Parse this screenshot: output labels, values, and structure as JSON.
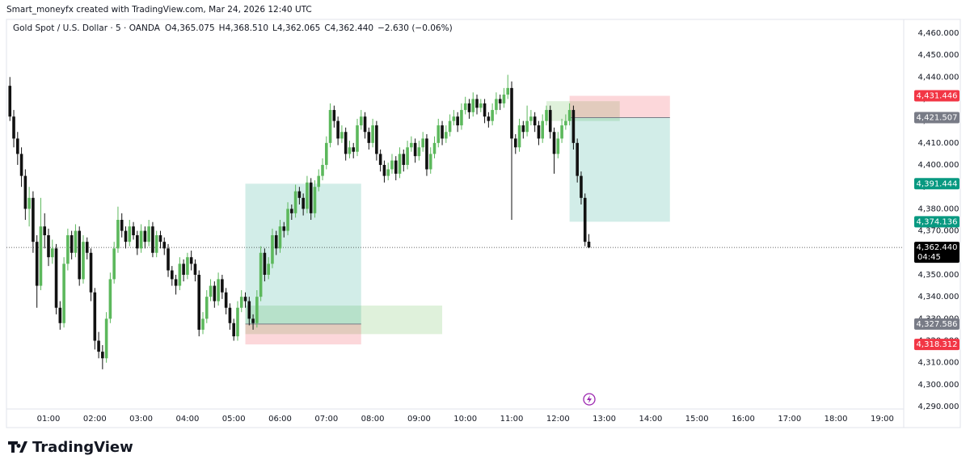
{
  "chart_data": {
    "type": "candlestick",
    "attribution": "Smart_moneyfx created with TradingView.com, Mar 24, 2026 12:40 UTC",
    "legend": {
      "symbol": "Gold Spot / U.S. Dollar · 5 · OANDA",
      "items": [
        {
          "key": "O",
          "label": "4,365.075"
        },
        {
          "key": "H",
          "label": "4,368.510"
        },
        {
          "key": "L",
          "label": "4,362.065"
        },
        {
          "key": "C",
          "label": "4,362.440"
        }
      ],
      "change": "−2.630 (−0.06%)"
    },
    "logo": "TradingView",
    "up_color": "#5cb85c",
    "down_color": "#111111",
    "ylim": [
      4281.2,
      4469.9
    ],
    "yticks": [
      {
        "value": 4460,
        "label": "4,460.000"
      },
      {
        "value": 4450,
        "label": "4,450.000"
      },
      {
        "value": 4440,
        "label": "4,440.000"
      },
      {
        "value": 4430,
        "label": "4,430.000"
      },
      {
        "value": 4420,
        "label": "4,420.000"
      },
      {
        "value": 4410,
        "label": "4,410.000"
      },
      {
        "value": 4400,
        "label": "4,400.000"
      },
      {
        "value": 4390,
        "label": "4,390.000"
      },
      {
        "value": 4380,
        "label": "4,380.000"
      },
      {
        "value": 4370,
        "label": "4,370.000"
      },
      {
        "value": 4360,
        "label": "4,360.000"
      },
      {
        "value": 4350,
        "label": "4,350.000"
      },
      {
        "value": 4340,
        "label": "4,340.000"
      },
      {
        "value": 4330,
        "label": "4,330.000"
      },
      {
        "value": 4320,
        "label": "4,320.000"
      },
      {
        "value": 4310,
        "label": "4,310.000"
      },
      {
        "value": 4300,
        "label": "4,300.000"
      },
      {
        "value": 4290,
        "label": "4,290.000"
      }
    ],
    "xticks": [
      "01:00",
      "02:00",
      "03:00",
      "04:00",
      "05:00",
      "06:00",
      "07:00",
      "08:00",
      "09:00",
      "10:00",
      "11:00",
      "12:00",
      "13:00",
      "14:00",
      "15:00",
      "16:00",
      "17:00",
      "18:00",
      "19:00"
    ],
    "grid": false,
    "price_labels": [
      {
        "value": 4431.446,
        "label": "4,431.446",
        "color": "#f23645"
      },
      {
        "value": 4421.507,
        "label": "4,421.507",
        "color": "#787b86"
      },
      {
        "value": 4391.444,
        "label": "4,391.444",
        "color": "#089981"
      },
      {
        "value": 4374.136,
        "label": "4,374.136",
        "color": "#089981"
      },
      {
        "value": 4362.44,
        "label": "4,362.440",
        "color": "#000000",
        "countdown": "04:45"
      },
      {
        "value": 4327.586,
        "label": "4,327.586",
        "color": "#787b86"
      },
      {
        "value": 4318.312,
        "label": "4,318.312",
        "color": "#f23645"
      }
    ],
    "positions": [
      {
        "entry": 4327.586,
        "stop": 4318.312,
        "target": 4391.444,
        "start": "05:15",
        "end": "07:45"
      },
      {
        "entry": 4421.507,
        "stop": 4431.446,
        "target": 4374.136,
        "start": "12:15",
        "end": "14:25"
      }
    ],
    "zones": [
      {
        "top": 4336,
        "bottom": 4323,
        "start": "05:15",
        "end": "09:30"
      },
      {
        "top": 4429,
        "bottom": 4420,
        "start": "11:45",
        "end": "13:20"
      }
    ],
    "x": [
      "00:10",
      "00:15",
      "00:20",
      "00:25",
      "00:30",
      "00:35",
      "00:40",
      "00:45",
      "00:50",
      "00:55",
      "01:00",
      "01:05",
      "01:10",
      "01:15",
      "01:20",
      "01:25",
      "01:30",
      "01:35",
      "01:40",
      "01:45",
      "01:50",
      "01:55",
      "02:00",
      "02:05",
      "02:10",
      "02:15",
      "02:20",
      "02:25",
      "02:30",
      "02:35",
      "02:40",
      "02:45",
      "02:50",
      "02:55",
      "03:00",
      "03:05",
      "03:10",
      "03:15",
      "03:20",
      "03:25",
      "03:30",
      "03:35",
      "03:40",
      "03:45",
      "03:50",
      "03:55",
      "04:00",
      "04:05",
      "04:10",
      "04:15",
      "04:20",
      "04:25",
      "04:30",
      "04:35",
      "04:40",
      "04:45",
      "04:50",
      "04:55",
      "05:00",
      "05:05",
      "05:10",
      "05:15",
      "05:20",
      "05:25",
      "05:30",
      "05:35",
      "05:40",
      "05:45",
      "05:50",
      "05:55",
      "06:00",
      "06:05",
      "06:10",
      "06:15",
      "06:20",
      "06:25",
      "06:30",
      "06:35",
      "06:40",
      "06:45",
      "06:50",
      "06:55",
      "07:00",
      "07:05",
      "07:10",
      "07:15",
      "07:20",
      "07:25",
      "07:30",
      "07:35",
      "07:40",
      "07:45",
      "07:50",
      "07:55",
      "08:00",
      "08:05",
      "08:10",
      "08:15",
      "08:20",
      "08:25",
      "08:30",
      "08:35",
      "08:40",
      "08:45",
      "08:50",
      "08:55",
      "09:00",
      "09:05",
      "09:10",
      "09:15",
      "09:20",
      "09:25",
      "09:30",
      "09:35",
      "09:40",
      "09:45",
      "09:50",
      "09:55",
      "10:00",
      "10:05",
      "10:10",
      "10:15",
      "10:20",
      "10:25",
      "10:30",
      "10:35",
      "10:40",
      "10:45",
      "10:50",
      "10:55",
      "11:00",
      "11:05",
      "11:10",
      "11:15",
      "11:20",
      "11:25",
      "11:30",
      "11:35",
      "11:40",
      "11:45",
      "11:50",
      "11:55",
      "12:00",
      "12:05",
      "12:10",
      "12:15",
      "12:20",
      "12:25",
      "12:30",
      "12:35",
      "12:40"
    ],
    "ohlc": [
      [
        4436,
        4440,
        4420,
        4422
      ],
      [
        4422,
        4425,
        4408,
        4412
      ],
      [
        4412,
        4415,
        4400,
        4405
      ],
      [
        4405,
        4408,
        4390,
        4395
      ],
      [
        4395,
        4398,
        4375,
        4380
      ],
      [
        4380,
        4390,
        4372,
        4385
      ],
      [
        4385,
        4388,
        4360,
        4365
      ],
      [
        4365,
        4368,
        4335,
        4345
      ],
      [
        4345,
        4385,
        4343,
        4372
      ],
      [
        4372,
        4378,
        4362,
        4368
      ],
      [
        4368,
        4371,
        4354,
        4358
      ],
      [
        4358,
        4366,
        4355,
        4362
      ],
      [
        4362,
        4364,
        4332,
        4335
      ],
      [
        4335,
        4338,
        4325,
        4328
      ],
      [
        4328,
        4358,
        4326,
        4355
      ],
      [
        4355,
        4371,
        4352,
        4368
      ],
      [
        4368,
        4370,
        4357,
        4360
      ],
      [
        4360,
        4373,
        4358,
        4370
      ],
      [
        4370,
        4372,
        4345,
        4348
      ],
      [
        4348,
        4368,
        4346,
        4365
      ],
      [
        4365,
        4367,
        4357,
        4360
      ],
      [
        4360,
        4362,
        4338,
        4342
      ],
      [
        4342,
        4344,
        4316,
        4320
      ],
      [
        4320,
        4324,
        4312,
        4315
      ],
      [
        4315,
        4318,
        4307,
        4312
      ],
      [
        4312,
        4333,
        4310,
        4330
      ],
      [
        4330,
        4351,
        4328,
        4348
      ],
      [
        4348,
        4365,
        4346,
        4362
      ],
      [
        4362,
        4381,
        4360,
        4375
      ],
      [
        4375,
        4378,
        4367,
        4370
      ],
      [
        4370,
        4372,
        4362,
        4365
      ],
      [
        4365,
        4375,
        4363,
        4372
      ],
      [
        4372,
        4374,
        4366,
        4368
      ],
      [
        4368,
        4370,
        4359,
        4362
      ],
      [
        4362,
        4373,
        4360,
        4370
      ],
      [
        4370,
        4372,
        4362,
        4365
      ],
      [
        4365,
        4375,
        4363,
        4372
      ],
      [
        4372,
        4374,
        4358,
        4360
      ],
      [
        4360,
        4370,
        4358,
        4368
      ],
      [
        4368,
        4370,
        4362,
        4365
      ],
      [
        4365,
        4367,
        4359,
        4362
      ],
      [
        4362,
        4364,
        4349,
        4352
      ],
      [
        4352,
        4354,
        4345,
        4348
      ],
      [
        4348,
        4350,
        4341,
        4345
      ],
      [
        4345,
        4358,
        4343,
        4355
      ],
      [
        4355,
        4357,
        4347,
        4350
      ],
      [
        4350,
        4360,
        4348,
        4358
      ],
      [
        4358,
        4361,
        4352,
        4355
      ],
      [
        4355,
        4357,
        4347,
        4350
      ],
      [
        4350,
        4352,
        4322,
        4325
      ],
      [
        4325,
        4333,
        4323,
        4330
      ],
      [
        4330,
        4343,
        4328,
        4340
      ],
      [
        4340,
        4348,
        4338,
        4345
      ],
      [
        4345,
        4347,
        4335,
        4338
      ],
      [
        4338,
        4351,
        4336,
        4348
      ],
      [
        4348,
        4350,
        4339,
        4342
      ],
      [
        4342,
        4344,
        4332,
        4335
      ],
      [
        4335,
        4337,
        4325,
        4328
      ],
      [
        4328,
        4330,
        4320,
        4322
      ],
      [
        4322,
        4338,
        4320,
        4335
      ],
      [
        4335,
        4343,
        4333,
        4340
      ],
      [
        4340,
        4342,
        4335,
        4338
      ],
      [
        4338,
        4340,
        4327,
        4330
      ],
      [
        4330,
        4332,
        4325,
        4328
      ],
      [
        4328,
        4343,
        4326,
        4340
      ],
      [
        4340,
        4363,
        4338,
        4360
      ],
      [
        4360,
        4362,
        4347,
        4350
      ],
      [
        4350,
        4358,
        4348,
        4355
      ],
      [
        4355,
        4371,
        4353,
        4368
      ],
      [
        4368,
        4370,
        4359,
        4362
      ],
      [
        4362,
        4375,
        4360,
        4372
      ],
      [
        4372,
        4374,
        4367,
        4370
      ],
      [
        4370,
        4383,
        4368,
        4380
      ],
      [
        4380,
        4382,
        4375,
        4378
      ],
      [
        4378,
        4391,
        4376,
        4388
      ],
      [
        4388,
        4390,
        4382,
        4385
      ],
      [
        4385,
        4387,
        4377,
        4380
      ],
      [
        4380,
        4395,
        4378,
        4392
      ],
      [
        4392,
        4394,
        4375,
        4378
      ],
      [
        4378,
        4393,
        4376,
        4390
      ],
      [
        4390,
        4398,
        4388,
        4395
      ],
      [
        4395,
        4403,
        4393,
        4400
      ],
      [
        4400,
        4413,
        4398,
        4410
      ],
      [
        4410,
        4428,
        4408,
        4425
      ],
      [
        4425,
        4427,
        4417,
        4420
      ],
      [
        4420,
        4422,
        4409,
        4412
      ],
      [
        4412,
        4418,
        4410,
        4415
      ],
      [
        4415,
        4417,
        4402,
        4405
      ],
      [
        4405,
        4411,
        4403,
        4408
      ],
      [
        4408,
        4410,
        4403,
        4406
      ],
      [
        4406,
        4421,
        4404,
        4418
      ],
      [
        4418,
        4425,
        4416,
        4422
      ],
      [
        4422,
        4424,
        4412,
        4415
      ],
      [
        4415,
        4417,
        4407,
        4410
      ],
      [
        4410,
        4421,
        4408,
        4418
      ],
      [
        4418,
        4420,
        4402,
        4405
      ],
      [
        4405,
        4407,
        4397,
        4400
      ],
      [
        4400,
        4402,
        4392,
        4395
      ],
      [
        4395,
        4401,
        4393,
        4398
      ],
      [
        4398,
        4405,
        4396,
        4402
      ],
      [
        4402,
        4404,
        4393,
        4396
      ],
      [
        4396,
        4408,
        4394,
        4405
      ],
      [
        4405,
        4407,
        4397,
        4400
      ],
      [
        4400,
        4411,
        4398,
        4408
      ],
      [
        4408,
        4413,
        4406,
        4410
      ],
      [
        4410,
        4412,
        4401,
        4404
      ],
      [
        4404,
        4411,
        4402,
        4408
      ],
      [
        4408,
        4415,
        4406,
        4412
      ],
      [
        4412,
        4414,
        4395,
        4398
      ],
      [
        4398,
        4408,
        4396,
        4405
      ],
      [
        4405,
        4413,
        4403,
        4410
      ],
      [
        4410,
        4421,
        4408,
        4418
      ],
      [
        4418,
        4420,
        4409,
        4412
      ],
      [
        4412,
        4418,
        4410,
        4415
      ],
      [
        4415,
        4423,
        4413,
        4420
      ],
      [
        4420,
        4425,
        4418,
        4422
      ],
      [
        4422,
        4424,
        4415,
        4418
      ],
      [
        4418,
        4428,
        4416,
        4425
      ],
      [
        4425,
        4431,
        4423,
        4428
      ],
      [
        4428,
        4430,
        4421,
        4424
      ],
      [
        4424,
        4433,
        4422,
        4430
      ],
      [
        4430,
        4432,
        4423,
        4426
      ],
      [
        4426,
        4430,
        4424,
        4428
      ],
      [
        4428,
        4430,
        4419,
        4422
      ],
      [
        4422,
        4424,
        4417,
        4420
      ],
      [
        4420,
        4428,
        4418,
        4425
      ],
      [
        4425,
        4433,
        4423,
        4430
      ],
      [
        4430,
        4432,
        4425,
        4428
      ],
      [
        4428,
        4435,
        4426,
        4432
      ],
      [
        4432,
        4441,
        4430,
        4435
      ],
      [
        4435,
        4438,
        4375,
        4412
      ],
      [
        4412,
        4414,
        4405,
        4408
      ],
      [
        4408,
        4421,
        4406,
        4418
      ],
      [
        4418,
        4420,
        4412,
        4415
      ],
      [
        4415,
        4427,
        4413,
        4420
      ],
      [
        4420,
        4425,
        4418,
        4422
      ],
      [
        4422,
        4424,
        4415,
        4418
      ],
      [
        4418,
        4420,
        4409,
        4412
      ],
      [
        4412,
        4423,
        4410,
        4420
      ],
      [
        4420,
        4427,
        4418,
        4425
      ],
      [
        4425,
        4427,
        4412,
        4415
      ],
      [
        4415,
        4417,
        4396,
        4405
      ],
      [
        4405,
        4415,
        4403,
        4412
      ],
      [
        4412,
        4421,
        4410,
        4418
      ],
      [
        4418,
        4423,
        4416,
        4420
      ],
      [
        4420,
        4428,
        4418,
        4425
      ],
      [
        4425,
        4427,
        4407,
        4410
      ],
      [
        4410,
        4412,
        4392,
        4395
      ],
      [
        4395,
        4397,
        4382,
        4385
      ],
      [
        4385,
        4387,
        4363,
        4365
      ],
      [
        4365.075,
        4368.51,
        4362.065,
        4362.44
      ]
    ]
  }
}
